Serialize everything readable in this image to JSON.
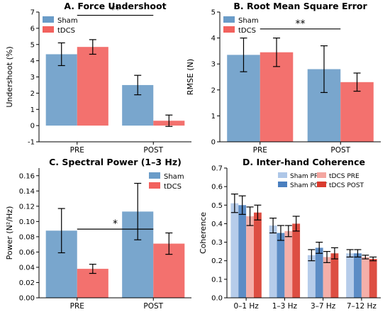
{
  "figure": {
    "background": "#ffffff"
  },
  "chart_data": [
    {
      "type": "bar",
      "title": "A. Force Undershoot",
      "xlabel": "",
      "ylabel": "Undershoot (%)",
      "ylim": [
        -1,
        7
      ],
      "yticks": [
        -1,
        0,
        1,
        2,
        3,
        4,
        5,
        6,
        7
      ],
      "categories": [
        "PRE",
        "POST"
      ],
      "series": [
        {
          "name": "Sham",
          "color": "#6a9cc8",
          "values": [
            4.4,
            2.5
          ],
          "err": [
            0.7,
            0.6
          ]
        },
        {
          "name": "tDCS",
          "color": "#f2625e",
          "values": [
            4.85,
            0.3
          ],
          "err": [
            0.45,
            0.35
          ]
        }
      ],
      "legend": "top-left",
      "annotations": [
        {
          "text": "**",
          "from": "PRE",
          "to": "POST",
          "y": 6.8
        }
      ]
    },
    {
      "type": "bar",
      "title": "B. Root Mean Square Error",
      "xlabel": "",
      "ylabel": "RMSE (N)",
      "ylim": [
        0,
        5
      ],
      "yticks": [
        0,
        1,
        2,
        3,
        4,
        5
      ],
      "categories": [
        "PRE",
        "POST"
      ],
      "series": [
        {
          "name": "Sham",
          "color": "#6a9cc8",
          "values": [
            3.35,
            2.8
          ],
          "err": [
            0.65,
            0.9
          ]
        },
        {
          "name": "tDCS",
          "color": "#f2625e",
          "values": [
            3.45,
            2.3
          ],
          "err": [
            0.55,
            0.35
          ]
        }
      ],
      "legend": "top-left",
      "annotations": [
        {
          "text": "**",
          "from": "PRE",
          "to": "POST",
          "y": 4.35
        }
      ]
    },
    {
      "type": "bar",
      "title": "C. Spectral Power (1–3 Hz)",
      "xlabel": "",
      "ylabel": "Power (N²/Hz)",
      "ylim": [
        0,
        0.17
      ],
      "yticks": [
        0.0,
        0.02,
        0.04,
        0.06,
        0.08,
        0.1,
        0.12,
        0.14,
        0.16
      ],
      "categories": [
        "PRE",
        "POST"
      ],
      "series": [
        {
          "name": "Sham",
          "color": "#6a9cc8",
          "values": [
            0.088,
            0.113
          ],
          "err": [
            0.029,
            0.037
          ]
        },
        {
          "name": "tDCS",
          "color": "#f2625e",
          "values": [
            0.038,
            0.071
          ],
          "err": [
            0.006,
            0.014
          ]
        }
      ],
      "legend": "top-right",
      "annotations": [
        {
          "text": "*",
          "from": "PRE",
          "to": "POST",
          "y": 0.09
        }
      ]
    },
    {
      "type": "bar",
      "title": "D. Inter-hand Coherence",
      "xlabel": "",
      "ylabel": "Coherence",
      "ylim": [
        0,
        0.7
      ],
      "yticks": [
        0.0,
        0.1,
        0.2,
        0.3,
        0.4,
        0.5,
        0.6,
        0.7
      ],
      "categories": [
        "0–1 Hz",
        "1–3 Hz",
        "3–7 Hz",
        "7–12 Hz"
      ],
      "series": [
        {
          "name": "Sham PRE",
          "color": "#aec7e8",
          "values": [
            0.51,
            0.39,
            0.23,
            0.24
          ],
          "err": [
            0.05,
            0.04,
            0.03,
            0.02
          ]
        },
        {
          "name": "Sham POST",
          "color": "#4a7fbf",
          "values": [
            0.5,
            0.35,
            0.27,
            0.24
          ],
          "err": [
            0.05,
            0.04,
            0.03,
            0.02
          ]
        },
        {
          "name": "tDCS PRE",
          "color": "#f4a6a0",
          "values": [
            0.44,
            0.36,
            0.22,
            0.22
          ],
          "err": [
            0.05,
            0.03,
            0.03,
            0.01
          ]
        },
        {
          "name": "tDCS POST",
          "color": "#d93b2e",
          "values": [
            0.46,
            0.4,
            0.24,
            0.21
          ],
          "err": [
            0.04,
            0.04,
            0.03,
            0.01
          ]
        }
      ],
      "legend": "top-right",
      "annotations": []
    }
  ]
}
